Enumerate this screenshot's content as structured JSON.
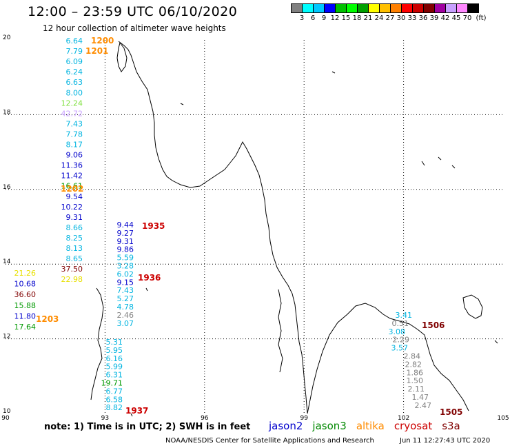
{
  "header": {
    "title": "12:00 – 23:59 UTC 06/10/2020",
    "subtitle": "12 hour collection of altimeter wave heights"
  },
  "legend": {
    "unit": "(ft)",
    "colors": [
      "#808080",
      "#00ffff",
      "#00c8ff",
      "#0000ff",
      "#00c000",
      "#00ff00",
      "#00a000",
      "#ffff00",
      "#ffc000",
      "#ff8000",
      "#ff0000",
      "#cc0000",
      "#800000",
      "#a000a0",
      "#c8a0ff",
      "#ff88ff",
      "#000000"
    ],
    "labels": [
      "3",
      "6",
      "9",
      "12",
      "15",
      "18",
      "21",
      "24",
      "27",
      "30",
      "33",
      "36",
      "39",
      "42",
      "45",
      "70"
    ]
  },
  "axes": {
    "x_ticks": [
      "90",
      "93",
      "96",
      "99",
      "102",
      "105"
    ],
    "y_ticks": [
      "20",
      "18",
      "16",
      "14",
      "12",
      "10"
    ]
  },
  "satellites": [
    {
      "name": "jason2",
      "color": "#0000cc"
    },
    {
      "name": "jason3",
      "color": "#008800"
    },
    {
      "name": "altika",
      "color": "#ff8c00"
    },
    {
      "name": "cryosat",
      "color": "#cc0000"
    },
    {
      "name": "s3a",
      "color": "#800000"
    }
  ],
  "passes": [
    {
      "label": "1200",
      "color": "#ff8c00"
    },
    {
      "label": "1201",
      "color": "#ff8c00"
    },
    {
      "label": "1202",
      "color": "#ff8c00"
    },
    {
      "label": "1203",
      "color": "#ff8c00"
    },
    {
      "label": "1935",
      "color": "#cc0000"
    },
    {
      "label": "1936",
      "color": "#cc0000"
    },
    {
      "label": "1937",
      "color": "#cc0000"
    },
    {
      "label": "1505",
      "color": "#800000"
    },
    {
      "label": "1506",
      "color": "#800000"
    }
  ],
  "tracks": [
    {
      "id": "track-a",
      "values": [
        {
          "v": "6.64",
          "c": "#00b4e0"
        },
        {
          "v": "7.79",
          "c": "#00b4e0"
        },
        {
          "v": "6.09",
          "c": "#00b4e0"
        },
        {
          "v": "6.24",
          "c": "#00b4e0"
        },
        {
          "v": "6.63",
          "c": "#00b4e0"
        },
        {
          "v": "8.00",
          "c": "#00b4e0"
        },
        {
          "v": "12.24",
          "c": "#80e040"
        },
        {
          "v": "42.72",
          "c": "#c8a0ff"
        },
        {
          "v": "7.43",
          "c": "#00b4e0"
        },
        {
          "v": "7.78",
          "c": "#00b4e0"
        },
        {
          "v": "8.17",
          "c": "#00b4e0"
        },
        {
          "v": "9.06",
          "c": "#0000cc"
        },
        {
          "v": "11.36",
          "c": "#0000cc"
        },
        {
          "v": "11.42",
          "c": "#0000cc"
        },
        {
          "v": "16.61",
          "c": "#009900"
        },
        {
          "v": "9.54",
          "c": "#0000cc"
        },
        {
          "v": "10.22",
          "c": "#0000cc"
        },
        {
          "v": "9.31",
          "c": "#0000cc"
        },
        {
          "v": "8.66",
          "c": "#00b4e0"
        },
        {
          "v": "8.25",
          "c": "#00b4e0"
        },
        {
          "v": "8.13",
          "c": "#00b4e0"
        },
        {
          "v": "8.65",
          "c": "#00b4e0"
        },
        {
          "v": "37.50",
          "c": "#800000"
        },
        {
          "v": "22.98",
          "c": "#e8e000"
        }
      ]
    },
    {
      "id": "track-b",
      "values": [
        {
          "v": "21.26",
          "c": "#e8e000"
        },
        {
          "v": "10.68",
          "c": "#0000cc"
        },
        {
          "v": "36.60",
          "c": "#800000"
        },
        {
          "v": "15.88",
          "c": "#009900"
        },
        {
          "v": "11.80",
          "c": "#0000cc"
        },
        {
          "v": "17.64",
          "c": "#009900"
        }
      ]
    },
    {
      "id": "track-c",
      "values": [
        {
          "v": "9.44",
          "c": "#0000cc"
        },
        {
          "v": "9.27",
          "c": "#0000cc"
        },
        {
          "v": "9.31",
          "c": "#0000cc"
        },
        {
          "v": "9.86",
          "c": "#0000cc"
        },
        {
          "v": "5.59",
          "c": "#00b4e0"
        },
        {
          "v": "3.28",
          "c": "#00b4e0"
        },
        {
          "v": "6.02",
          "c": "#00b4e0"
        },
        {
          "v": "9.15",
          "c": "#0000cc"
        },
        {
          "v": "7.43",
          "c": "#00b4e0"
        },
        {
          "v": "5.27",
          "c": "#00b4e0"
        },
        {
          "v": "4.78",
          "c": "#00b4e0"
        },
        {
          "v": "2.46",
          "c": "#808080"
        },
        {
          "v": "3.07",
          "c": "#00b4e0"
        }
      ]
    },
    {
      "id": "track-d",
      "values": [
        {
          "v": "5.31",
          "c": "#00b4e0"
        },
        {
          "v": "5.95",
          "c": "#00b4e0"
        },
        {
          "v": "6.16",
          "c": "#00b4e0"
        },
        {
          "v": "5.99",
          "c": "#00b4e0"
        },
        {
          "v": "6.31",
          "c": "#00b4e0"
        },
        {
          "v": "19.71",
          "c": "#009900"
        },
        {
          "v": "6.77",
          "c": "#00b4e0"
        },
        {
          "v": "6.58",
          "c": "#00b4e0"
        },
        {
          "v": "8.82",
          "c": "#00b4e0"
        }
      ]
    },
    {
      "id": "track-e",
      "values": [
        {
          "v": "3.41",
          "c": "#00b4e0"
        },
        {
          "v": "0.51",
          "c": "#808080"
        },
        {
          "v": "3.08",
          "c": "#00b4e0"
        },
        {
          "v": "2.29",
          "c": "#808080"
        },
        {
          "v": "3.57",
          "c": "#00b4e0"
        },
        {
          "v": "2.84",
          "c": "#808080"
        },
        {
          "v": "2.82",
          "c": "#808080"
        },
        {
          "v": "1.86",
          "c": "#808080"
        },
        {
          "v": "1.50",
          "c": "#808080"
        },
        {
          "v": "2.11",
          "c": "#808080"
        },
        {
          "v": "1.47",
          "c": "#808080"
        },
        {
          "v": "2.47",
          "c": "#808080"
        }
      ]
    }
  ],
  "footer": {
    "note": "note:  1) Time is in UTC;  2) SWH is in feet",
    "credit": "NOAA/NESDIS Center for Satellite Applications and Research",
    "timestamp": "Jun 11 12:27:43 UTC 2020"
  }
}
